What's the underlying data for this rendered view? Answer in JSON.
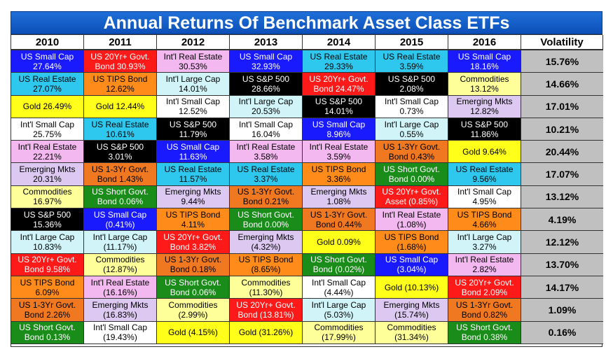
{
  "chart_data": {
    "type": "table",
    "title": "Annual Returns Of Benchmark Asset Class ETFs",
    "years": [
      "2010",
      "2011",
      "2012",
      "2013",
      "2014",
      "2015",
      "2016"
    ],
    "volatility_header": "Volatility",
    "asset_colors": {
      "US Small Cap": "#1a1aff",
      "US 20Yr+ Govt.": "#ff1a1a",
      "Int'l Real Estate": "#f4b8f0",
      "US Real Estate": "#2ec8ee",
      "US TIPS Bond": "#ff8c1a",
      "Int'l Large Cap": "#d0f4f8",
      "US S&P 500": "#000000",
      "Gold": "#ffff1a",
      "Int'l Small Cap": "#ffffff",
      "Emerging Mkts": "#dcc8f0",
      "US 1-3Yr Govt.": "#f07820",
      "Commodities": "#ffff99",
      "US Short Govt.": "#1a8c1a"
    },
    "rows": [
      {
        "cells": [
          {
            "asset": "US Small Cap",
            "l1": "US Small Cap",
            "l2": "27.64%",
            "value": 27.64
          },
          {
            "asset": "US 20Yr+ Govt.",
            "l1": "US 20Yr+ Govt.",
            "l2": "Bond 30.93%",
            "value": 30.93
          },
          {
            "asset": "Int'l Real Estate",
            "l1": "Int'l Real Estate",
            "l2": "30.53%",
            "value": 30.53
          },
          {
            "asset": "US Small Cap",
            "l1": "US Small Cap",
            "l2": "32.93%",
            "value": 32.93
          },
          {
            "asset": "US Real Estate",
            "l1": "US Real Estate",
            "l2": "29.33%",
            "value": 29.33
          },
          {
            "asset": "US Real Estate",
            "l1": "US Real Estate",
            "l2": "3.59%",
            "value": 3.59
          },
          {
            "asset": "US Small Cap",
            "l1": "US Small Cap",
            "l2": "18.16%",
            "value": 18.16
          }
        ],
        "volatility": "15.76%"
      },
      {
        "cells": [
          {
            "asset": "US Real Estate",
            "l1": "US Real Estate",
            "l2": "27.07%",
            "value": 27.07
          },
          {
            "asset": "US TIPS Bond",
            "l1": "US TIPS Bond",
            "l2": "12.62%",
            "value": 12.62
          },
          {
            "asset": "Int'l Large Cap",
            "l1": "Int'l Large Cap",
            "l2": "14.01%",
            "value": 14.01
          },
          {
            "asset": "US S&P 500",
            "l1": "US S&P 500",
            "l2": "28.66%",
            "value": 28.66
          },
          {
            "asset": "US 20Yr+ Govt.",
            "l1": "US 20Yr+ Govt.",
            "l2": "Bond 24.47%",
            "value": 24.47
          },
          {
            "asset": "US S&P 500",
            "l1": "US S&P 500",
            "l2": "2.08%",
            "value": 2.08
          },
          {
            "asset": "Commodities",
            "l1": "Commodities",
            "l2": "13.12%",
            "value": 13.12
          }
        ],
        "volatility": "14.66%"
      },
      {
        "cells": [
          {
            "asset": "Gold",
            "l1": "",
            "l2": "Gold 26.49%",
            "value": 26.49
          },
          {
            "asset": "Gold",
            "l1": "",
            "l2": "Gold 12.44%",
            "value": 12.44
          },
          {
            "asset": "Int'l Small Cap",
            "l1": "Int'l Small Cap",
            "l2": "12.52%",
            "value": 12.52
          },
          {
            "asset": "Int'l Large Cap",
            "l1": "Int'l Large Cap",
            "l2": "20.53%",
            "value": 20.53
          },
          {
            "asset": "US S&P 500",
            "l1": "US S&P 500",
            "l2": "14.01%",
            "value": 14.01
          },
          {
            "asset": "Int'l Small Cap",
            "l1": "Int'l Small Cap",
            "l2": "0.73%",
            "value": 0.73
          },
          {
            "asset": "Emerging Mkts",
            "l1": "Emerging Mkts",
            "l2": "12.82%",
            "value": 12.82
          }
        ],
        "volatility": "17.01%"
      },
      {
        "cells": [
          {
            "asset": "Int'l Small Cap",
            "l1": "Int'l Small Cap",
            "l2": "25.75%",
            "value": 25.75
          },
          {
            "asset": "US Real Estate",
            "l1": "US Real Estate",
            "l2": "10.61%",
            "value": 10.61
          },
          {
            "asset": "US S&P 500",
            "l1": "US S&P 500",
            "l2": "11.79%",
            "value": 11.79
          },
          {
            "asset": "Int'l Small Cap",
            "l1": "Int'l Small Cap",
            "l2": "16.04%",
            "value": 16.04
          },
          {
            "asset": "US Small Cap",
            "l1": "US Small Cap",
            "l2": "8.96%",
            "value": 8.96
          },
          {
            "asset": "Int'l Large Cap",
            "l1": "Int'l Large Cap",
            "l2": "0.55%",
            "value": 0.55
          },
          {
            "asset": "US S&P 500",
            "l1": "US S&P 500",
            "l2": "11.86%",
            "value": 11.86
          }
        ],
        "volatility": "10.21%"
      },
      {
        "cells": [
          {
            "asset": "Int'l Real Estate",
            "l1": "Int'l Real Estate",
            "l2": "22.21%",
            "value": 22.21
          },
          {
            "asset": "US S&P 500",
            "l1": "US S&P 500",
            "l2": "3.01%",
            "value": 3.01
          },
          {
            "asset": "US Small Cap",
            "l1": "US Small Cap",
            "l2": "11.63%",
            "value": 11.63
          },
          {
            "asset": "Int'l Real Estate",
            "l1": "Int'l Real Estate",
            "l2": "3.58%",
            "value": 3.58
          },
          {
            "asset": "Int'l Real Estate",
            "l1": "Int'l Real Estate",
            "l2": "3.59%",
            "value": 3.59
          },
          {
            "asset": "US 1-3Yr Govt.",
            "l1": "US 1-3Yr Govt.",
            "l2": "Bond 0.43%",
            "value": 0.43
          },
          {
            "asset": "Gold",
            "l1": "",
            "l2": "Gold 9.64%",
            "value": 9.64
          }
        ],
        "volatility": "20.44%"
      },
      {
        "cells": [
          {
            "asset": "Emerging Mkts",
            "l1": "Emerging Mkts",
            "l2": "20.31%",
            "value": 20.31
          },
          {
            "asset": "US 1-3Yr Govt.",
            "l1": "US 1-3Yr Govt.",
            "l2": "Bond 1.43%",
            "value": 1.43
          },
          {
            "asset": "US Real Estate",
            "l1": "US Real Estate",
            "l2": "11.57%",
            "value": 11.57
          },
          {
            "asset": "US Real Estate",
            "l1": "US Real Estate",
            "l2": "3.37%",
            "value": 3.37
          },
          {
            "asset": "US TIPS Bond",
            "l1": "US TIPS Bond",
            "l2": "3.36%",
            "value": 3.36
          },
          {
            "asset": "US Short Govt.",
            "l1": "US Short Govt.",
            "l2": "Bond 0.00%",
            "value": 0.0
          },
          {
            "asset": "US Real Estate",
            "l1": "US Real Estate",
            "l2": "9.56%",
            "value": 9.56
          }
        ],
        "volatility": "17.07%"
      },
      {
        "cells": [
          {
            "asset": "Commodities",
            "l1": "Commodities",
            "l2": "16.97%",
            "value": 16.97
          },
          {
            "asset": "US Short Govt.",
            "l1": "US Short Govt.",
            "l2": "Bond 0.06%",
            "value": 0.06
          },
          {
            "asset": "Emerging Mkts",
            "l1": "Emerging Mkts",
            "l2": "9.44%",
            "value": 9.44
          },
          {
            "asset": "US 1-3Yr Govt.",
            "l1": "US 1-3Yr Govt.",
            "l2": "Bond 0.21%",
            "value": 0.21
          },
          {
            "asset": "Emerging Mkts",
            "l1": "Emerging Mkts",
            "l2": "1.08%",
            "value": 1.08
          },
          {
            "asset": "US 20Yr+ Govt.",
            "l1": "US 20Yr+ Govt.",
            "l2": "Asset (0.85%)",
            "value": -0.85
          },
          {
            "asset": "Int'l Small Cap",
            "l1": "Int'l Small Cap",
            "l2": "4.95%",
            "value": 4.95
          }
        ],
        "volatility": "13.12%"
      },
      {
        "cells": [
          {
            "asset": "US S&P 500",
            "l1": "US S&P 500",
            "l2": "15.36%",
            "value": 15.36
          },
          {
            "asset": "US Small Cap",
            "l1": "US Small Cap",
            "l2": "(0.41%)",
            "value": -0.41
          },
          {
            "asset": "US TIPS Bond",
            "l1": "US TIPS Bond",
            "l2": "4.11%",
            "value": 4.11
          },
          {
            "asset": "US Short Govt.",
            "l1": "US Short Govt.",
            "l2": "Bond 0.00%",
            "value": 0.0
          },
          {
            "asset": "US 1-3Yr Govt.",
            "l1": "US 1-3Yr Govt.",
            "l2": "Bond 0.44%",
            "value": 0.44
          },
          {
            "asset": "Int'l Real Estate",
            "l1": "Int'l Real Estate",
            "l2": "(1.08%)",
            "value": -1.08
          },
          {
            "asset": "US TIPS Bond",
            "l1": "US TIPS Bond",
            "l2": "4.66%",
            "value": 4.66
          }
        ],
        "volatility": "4.19%"
      },
      {
        "cells": [
          {
            "asset": "Int'l Large Cap",
            "l1": "Int'l Large Cap",
            "l2": "10.83%",
            "value": 10.83
          },
          {
            "asset": "Int'l Large Cap",
            "l1": "Int'l Large Cap",
            "l2": "(11.17%)",
            "value": -11.17
          },
          {
            "asset": "US 20Yr+ Govt.",
            "l1": "US 20Yr+ Govt.",
            "l2": "Bond 3.82%",
            "value": 3.82
          },
          {
            "asset": "Emerging Mkts",
            "l1": "Emerging Mkts",
            "l2": "(4.32%)",
            "value": -4.32
          },
          {
            "asset": "Gold",
            "l1": "",
            "l2": "Gold 0.09%",
            "value": 0.09
          },
          {
            "asset": "US TIPS Bond",
            "l1": "US TIPS Bond",
            "l2": "(1.68%)",
            "value": -1.68
          },
          {
            "asset": "Int'l Large Cap",
            "l1": "Int'l Large Cap",
            "l2": "3.27%",
            "value": 3.27
          }
        ],
        "volatility": "12.12%"
      },
      {
        "cells": [
          {
            "asset": "US 20Yr+ Govt.",
            "l1": "US 20Yr+ Govt.",
            "l2": "Bond 9.58%",
            "value": 9.58
          },
          {
            "asset": "Commodities",
            "l1": "Commodities",
            "l2": "(12.87%)",
            "value": -12.87
          },
          {
            "asset": "US 1-3Yr Govt.",
            "l1": "US 1-3Yr Govt.",
            "l2": "Bond 0.18%",
            "value": 0.18
          },
          {
            "asset": "US TIPS Bond",
            "l1": "US TIPS Bond",
            "l2": "(8.65%)",
            "value": -8.65
          },
          {
            "asset": "US Short Govt.",
            "l1": "US Short Govt.",
            "l2": "Bond (0.02%)",
            "value": -0.02
          },
          {
            "asset": "US Small Cap",
            "l1": "US Small Cap",
            "l2": "(3.04%)",
            "value": -3.04
          },
          {
            "asset": "Int'l Real Estate",
            "l1": "Int'l Real Estate",
            "l2": "2.82%",
            "value": 2.82
          }
        ],
        "volatility": "13.70%"
      },
      {
        "cells": [
          {
            "asset": "US TIPS Bond",
            "l1": "US TIPS Bond",
            "l2": "6.09%",
            "value": 6.09
          },
          {
            "asset": "Int'l Real Estate",
            "l1": "Int'l Real Estate",
            "l2": "(16.16%)",
            "value": -16.16
          },
          {
            "asset": "US Short Govt.",
            "l1": "US Short Govt.",
            "l2": "Bond 0.06%",
            "value": 0.06
          },
          {
            "asset": "Commodities",
            "l1": "Commodities",
            "l2": "(11.30%)",
            "value": -11.3
          },
          {
            "asset": "Int'l Small Cap",
            "l1": "Int'l Small Cap",
            "l2": "(4.44%)",
            "value": -4.44
          },
          {
            "asset": "Gold",
            "l1": "",
            "l2": "Gold (10.13%)",
            "value": -10.13
          },
          {
            "asset": "US 20Yr+ Govt.",
            "l1": "US 20Yr+ Govt.",
            "l2": "Bond 2.09%",
            "value": 2.09
          }
        ],
        "volatility": "14.17%"
      },
      {
        "cells": [
          {
            "asset": "US 1-3Yr Govt.",
            "l1": "US 1-3Yr Govt.",
            "l2": "Bond 2.26%",
            "value": 2.26
          },
          {
            "asset": "Emerging Mkts",
            "l1": "Emerging Mkts",
            "l2": "(16.83%)",
            "value": -16.83
          },
          {
            "asset": "Commodities",
            "l1": "Commodities",
            "l2": "(2.99%)",
            "value": -2.99
          },
          {
            "asset": "US 20Yr+ Govt.",
            "l1": "US 20Yr+ Govt.",
            "l2": "Bond (13.81%)",
            "value": -13.81
          },
          {
            "asset": "Int'l Large Cap",
            "l1": "Int'l Large Cap",
            "l2": "(5.03%)",
            "value": -5.03
          },
          {
            "asset": "Emerging Mkts",
            "l1": "Emerging Mkts",
            "l2": "(15.74%)",
            "value": -15.74
          },
          {
            "asset": "US 1-3Yr Govt.",
            "l1": "US 1-3Yr Govt.",
            "l2": "Bond 0.82%",
            "value": 0.82
          }
        ],
        "volatility": "1.09%"
      },
      {
        "cells": [
          {
            "asset": "US Short Govt.",
            "l1": "US Short Govt.",
            "l2": "Bond 0.13%",
            "value": 0.13
          },
          {
            "asset": "Int'l Small Cap",
            "l1": "Int'l Small Cap",
            "l2": "(19.43%)",
            "value": -19.43
          },
          {
            "asset": "Gold",
            "l1": "",
            "l2": "Gold (4.15%)",
            "value": -4.15
          },
          {
            "asset": "Gold",
            "l1": "",
            "l2": "Gold (31.26%)",
            "value": -31.26
          },
          {
            "asset": "Commodities",
            "l1": "Commodities",
            "l2": "(17.99%)",
            "value": -17.99
          },
          {
            "asset": "Commodities",
            "l1": "Commodities",
            "l2": "(31.34%)",
            "value": -31.34
          },
          {
            "asset": "US Short Govt.",
            "l1": "US Short Govt.",
            "l2": "Bond 0.38%",
            "value": 0.38
          }
        ],
        "volatility": "0.16%"
      }
    ]
  }
}
